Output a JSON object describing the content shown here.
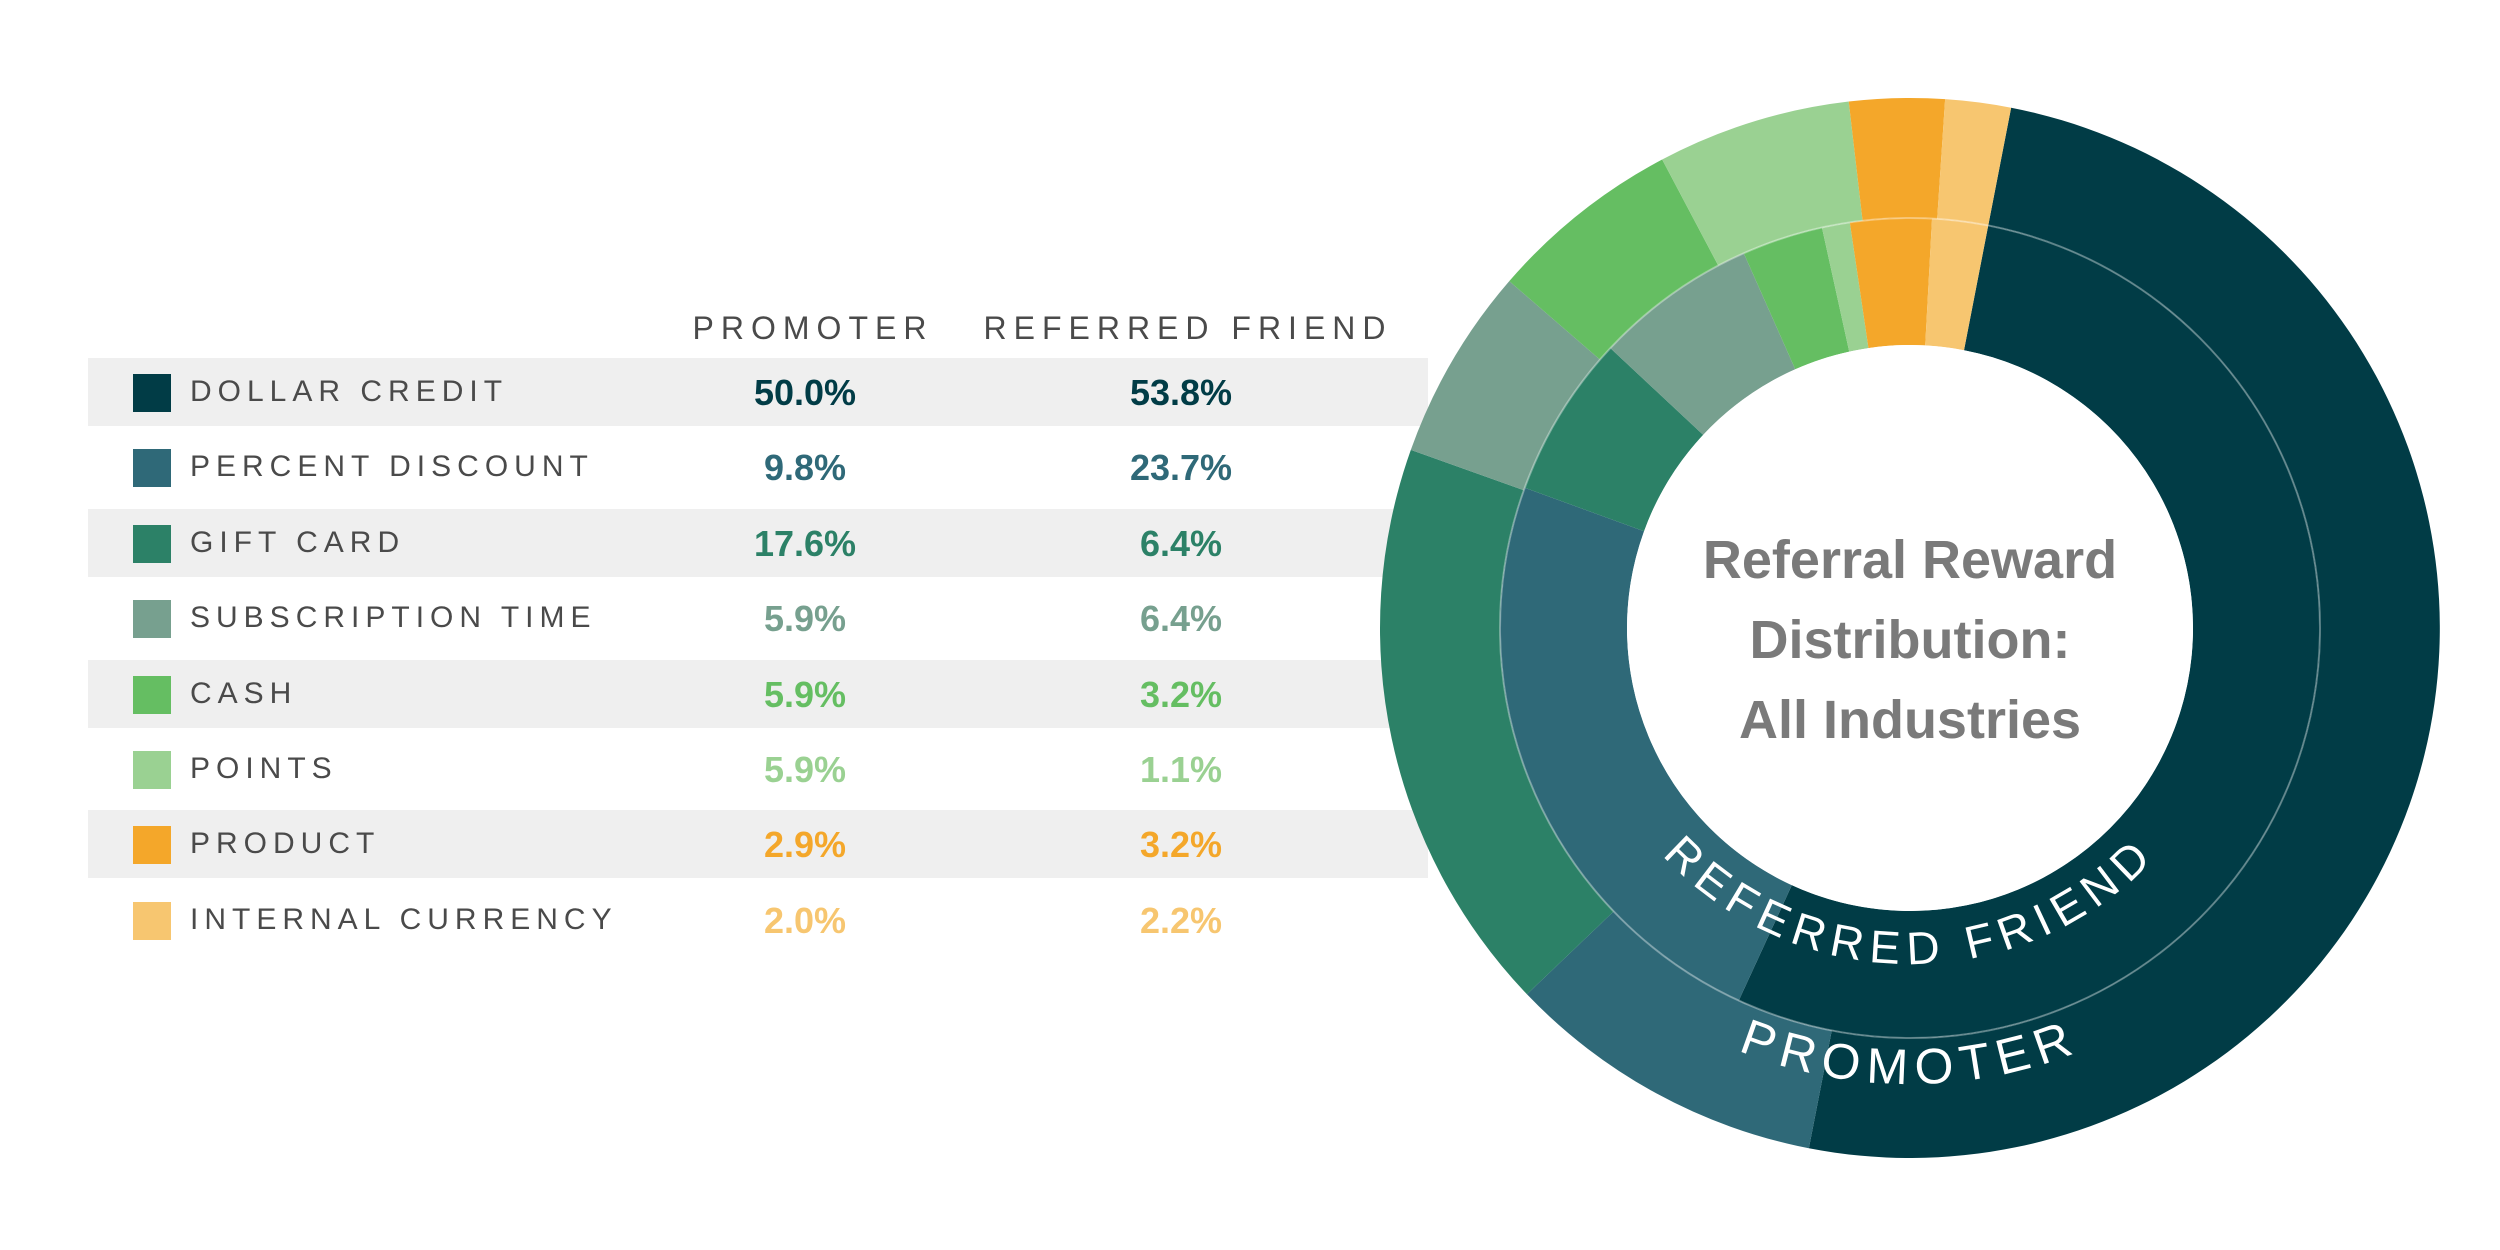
{
  "chart_data": {
    "type": "sunburst",
    "title_lines": [
      "Referral Reward",
      "Distribution:",
      "All Industries"
    ],
    "ring_labels": {
      "outer": "PROMOTER",
      "inner": "REFERRED FRIEND"
    },
    "columns": [
      "PROMOTER",
      "REFERRED FRIEND"
    ],
    "categories": [
      "DOLLAR CREDIT",
      "PERCENT DISCOUNT",
      "GIFT CARD",
      "SUBSCRIPTION TIME",
      "CASH",
      "POINTS",
      "PRODUCT",
      "INTERNAL CURRENCY"
    ],
    "colors": [
      "#013C46",
      "#2F6978",
      "#2C8167",
      "#77A08F",
      "#65BE62",
      "#9AD192",
      "#F4A72A",
      "#F7C670"
    ],
    "series": [
      {
        "name": "PROMOTER",
        "values": [
          50.0,
          9.8,
          17.6,
          5.9,
          5.9,
          5.9,
          2.9,
          2.0
        ],
        "labels": [
          "50.0%",
          "9.8%",
          "17.6%",
          "5.9%",
          "5.9%",
          "5.9%",
          "2.9%",
          "2.0%"
        ]
      },
      {
        "name": "REFERRED FRIEND",
        "values": [
          53.8,
          23.7,
          6.4,
          6.4,
          3.2,
          1.1,
          3.2,
          2.2
        ],
        "labels": [
          "53.8%",
          "23.7%",
          "6.4%",
          "6.4%",
          "3.2%",
          "1.1%",
          "3.2%",
          "2.2%"
        ]
      }
    ]
  }
}
